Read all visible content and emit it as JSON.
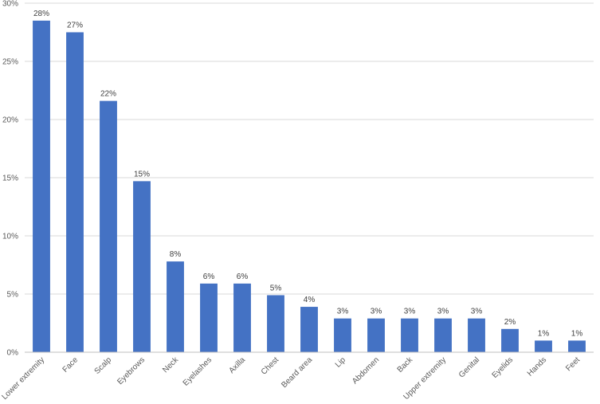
{
  "chart_data": {
    "type": "bar",
    "title": "",
    "xlabel": "",
    "ylabel": "",
    "ylim": [
      0,
      30
    ],
    "yticks": [
      "0%",
      "5%",
      "10%",
      "15%",
      "20%",
      "25%",
      "30%"
    ],
    "grid": true,
    "legend": "none",
    "bar_color": "#4472c4",
    "categories": [
      "Lower extremity",
      "Face",
      "Scalp",
      "Eyebrows",
      "Neck",
      "Eyelashes",
      "Axilla",
      "Chest",
      "Beard area",
      "Lip",
      "Abdomen",
      "Back",
      "Upper extremity",
      "Genital",
      "Eyelids",
      "Hands",
      "Feet"
    ],
    "values": [
      28.5,
      27.5,
      21.6,
      14.7,
      7.8,
      5.9,
      5.9,
      4.9,
      3.9,
      2.9,
      2.9,
      2.9,
      2.9,
      2.9,
      2.0,
      1.0,
      1.0
    ],
    "data_labels": [
      "28%",
      "27%",
      "22%",
      "15%",
      "8%",
      "6%",
      "6%",
      "5%",
      "4%",
      "3%",
      "3%",
      "3%",
      "3%",
      "3%",
      "2%",
      "1%",
      "1%"
    ]
  }
}
